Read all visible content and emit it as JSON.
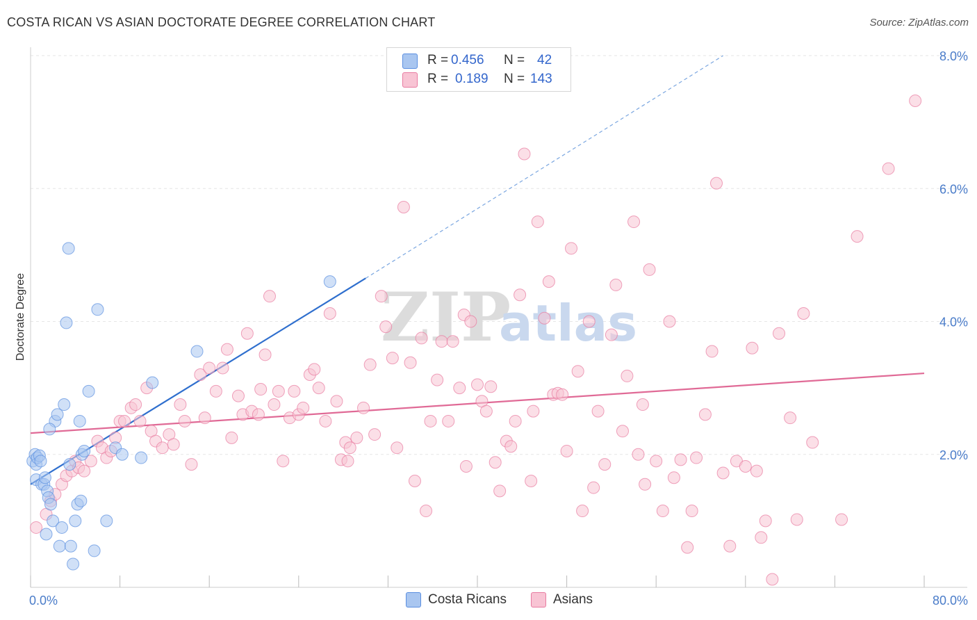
{
  "title": "COSTA RICAN VS ASIAN DOCTORATE DEGREE CORRELATION CHART",
  "source": "Source: ZipAtlas.com",
  "watermark": {
    "zip": "ZIP",
    "atlas": "atlas"
  },
  "legend": {
    "rows": [
      {
        "r_label": "R =",
        "r_value": "0.456",
        "n_label": "N =",
        "n_value": "42",
        "color": "#a9c6f0",
        "border": "#5a8ee0"
      },
      {
        "r_label": "R =",
        "r_value": "0.189",
        "n_label": "N =",
        "n_value": "143",
        "color": "#f8c4d4",
        "border": "#e87aa0"
      }
    ]
  },
  "bottom_legend": [
    {
      "label": "Costa Ricans",
      "color": "#a9c6f0",
      "border": "#5a8ee0"
    },
    {
      "label": "Asians",
      "color": "#f8c4d4",
      "border": "#e87aa0"
    }
  ],
  "chart_data": {
    "type": "scatter",
    "title": "COSTA RICAN VS ASIAN DOCTORATE DEGREE CORRELATION CHART",
    "xlabel": "",
    "ylabel": "Doctorate Degree",
    "xlim": [
      0,
      80
    ],
    "ylim": [
      0,
      8
    ],
    "x_tick_labels": [
      "0.0%",
      "80.0%"
    ],
    "y_ticks": [
      2,
      4,
      6,
      8
    ],
    "y_tick_labels": [
      "2.0%",
      "4.0%",
      "6.0%",
      "8.0%"
    ],
    "grid": true,
    "series": [
      {
        "name": "Costa Ricans",
        "color": "#5a8ee0",
        "fill": "#a9c6f0",
        "R": 0.456,
        "N": 42,
        "trend": {
          "x0": 0,
          "y0": 1.55,
          "x1": 30,
          "y1": 4.65,
          "dashed_to_x": 62,
          "dashed_to_y": 8.0
        },
        "points": [
          [
            0.2,
            1.9
          ],
          [
            0.4,
            2.0
          ],
          [
            0.5,
            1.85
          ],
          [
            0.6,
            1.95
          ],
          [
            0.8,
            1.98
          ],
          [
            0.9,
            1.9
          ],
          [
            0.5,
            1.62
          ],
          [
            1.0,
            1.55
          ],
          [
            1.2,
            1.55
          ],
          [
            1.3,
            1.65
          ],
          [
            1.4,
            0.8
          ],
          [
            1.5,
            1.45
          ],
          [
            1.6,
            1.35
          ],
          [
            1.8,
            1.25
          ],
          [
            2.0,
            1.0
          ],
          [
            2.2,
            2.5
          ],
          [
            2.4,
            2.6
          ],
          [
            2.6,
            0.62
          ],
          [
            2.8,
            0.9
          ],
          [
            3.0,
            2.75
          ],
          [
            3.2,
            3.98
          ],
          [
            3.4,
            5.1
          ],
          [
            3.5,
            1.85
          ],
          [
            3.6,
            0.62
          ],
          [
            3.8,
            0.35
          ],
          [
            4.0,
            1.0
          ],
          [
            4.2,
            1.25
          ],
          [
            4.4,
            2.5
          ],
          [
            4.5,
            1.3
          ],
          [
            4.6,
            2.0
          ],
          [
            4.8,
            2.05
          ],
          [
            5.2,
            2.95
          ],
          [
            5.7,
            0.55
          ],
          [
            6.0,
            4.18
          ],
          [
            6.8,
            1.0
          ],
          [
            7.6,
            2.1
          ],
          [
            8.2,
            2.0
          ],
          [
            9.9,
            1.95
          ],
          [
            10.9,
            3.08
          ],
          [
            14.9,
            3.55
          ],
          [
            26.8,
            4.6
          ],
          [
            1.7,
            2.38
          ]
        ]
      },
      {
        "name": "Asians",
        "color": "#e87aa0",
        "fill": "#f8c4d4",
        "R": 0.189,
        "N": 143,
        "trend": {
          "x0": 0,
          "y0": 2.32,
          "x1": 80,
          "y1": 3.22
        },
        "points": [
          [
            0.5,
            0.9
          ],
          [
            1.4,
            1.1
          ],
          [
            1.8,
            1.3
          ],
          [
            2.2,
            1.4
          ],
          [
            2.8,
            1.55
          ],
          [
            3.2,
            1.68
          ],
          [
            3.7,
            1.75
          ],
          [
            4.0,
            1.9
          ],
          [
            4.3,
            1.8
          ],
          [
            4.8,
            1.75
          ],
          [
            5.4,
            1.9
          ],
          [
            6.0,
            2.2
          ],
          [
            6.4,
            2.1
          ],
          [
            6.8,
            1.95
          ],
          [
            7.2,
            2.05
          ],
          [
            7.6,
            2.25
          ],
          [
            8.0,
            2.5
          ],
          [
            8.4,
            2.5
          ],
          [
            9.0,
            2.7
          ],
          [
            9.4,
            2.75
          ],
          [
            9.8,
            2.5
          ],
          [
            10.4,
            3.0
          ],
          [
            10.8,
            2.35
          ],
          [
            11.2,
            2.2
          ],
          [
            11.8,
            2.1
          ],
          [
            12.4,
            2.3
          ],
          [
            12.8,
            2.15
          ],
          [
            13.4,
            2.75
          ],
          [
            13.8,
            2.5
          ],
          [
            14.4,
            1.85
          ],
          [
            15.2,
            3.2
          ],
          [
            15.6,
            2.55
          ],
          [
            16.0,
            3.3
          ],
          [
            16.6,
            2.95
          ],
          [
            17.2,
            3.3
          ],
          [
            17.6,
            3.58
          ],
          [
            18.0,
            2.25
          ],
          [
            18.6,
            2.88
          ],
          [
            19.0,
            2.6
          ],
          [
            19.4,
            3.82
          ],
          [
            19.8,
            2.65
          ],
          [
            20.6,
            2.98
          ],
          [
            21.0,
            3.5
          ],
          [
            21.4,
            4.38
          ],
          [
            21.8,
            2.75
          ],
          [
            22.2,
            2.95
          ],
          [
            22.6,
            1.9
          ],
          [
            23.2,
            2.55
          ],
          [
            23.6,
            2.95
          ],
          [
            24.0,
            2.6
          ],
          [
            24.4,
            2.7
          ],
          [
            25.0,
            3.2
          ],
          [
            25.4,
            3.28
          ],
          [
            25.8,
            3.0
          ],
          [
            26.4,
            2.5
          ],
          [
            26.8,
            4.12
          ],
          [
            27.4,
            2.8
          ],
          [
            27.8,
            1.92
          ],
          [
            28.2,
            2.18
          ],
          [
            28.6,
            2.1
          ],
          [
            29.2,
            2.25
          ],
          [
            29.8,
            2.7
          ],
          [
            30.4,
            3.35
          ],
          [
            30.8,
            2.3
          ],
          [
            31.4,
            4.38
          ],
          [
            31.8,
            3.92
          ],
          [
            32.4,
            3.45
          ],
          [
            32.8,
            2.1
          ],
          [
            33.4,
            5.72
          ],
          [
            34.0,
            3.38
          ],
          [
            34.4,
            1.6
          ],
          [
            35.0,
            3.75
          ],
          [
            35.4,
            1.15
          ],
          [
            35.8,
            2.5
          ],
          [
            36.4,
            3.12
          ],
          [
            36.8,
            3.7
          ],
          [
            37.4,
            2.5
          ],
          [
            37.8,
            3.7
          ],
          [
            38.4,
            3.0
          ],
          [
            38.8,
            4.1
          ],
          [
            39.4,
            4.0
          ],
          [
            40.0,
            3.05
          ],
          [
            40.4,
            2.8
          ],
          [
            40.8,
            2.65
          ],
          [
            41.2,
            3.02
          ],
          [
            41.6,
            1.88
          ],
          [
            42.0,
            1.45
          ],
          [
            42.6,
            2.2
          ],
          [
            43.0,
            2.12
          ],
          [
            43.4,
            2.5
          ],
          [
            43.8,
            4.4
          ],
          [
            44.2,
            6.52
          ],
          [
            44.8,
            1.6
          ],
          [
            45.0,
            2.65
          ],
          [
            45.4,
            5.5
          ],
          [
            46.0,
            4.05
          ],
          [
            46.4,
            4.6
          ],
          [
            46.8,
            2.9
          ],
          [
            47.2,
            2.92
          ],
          [
            47.6,
            2.9
          ],
          [
            48.0,
            2.05
          ],
          [
            48.4,
            5.1
          ],
          [
            49.0,
            3.25
          ],
          [
            49.4,
            1.15
          ],
          [
            50.0,
            4.0
          ],
          [
            50.4,
            1.5
          ],
          [
            50.8,
            2.65
          ],
          [
            51.4,
            1.85
          ],
          [
            52.0,
            3.8
          ],
          [
            52.4,
            4.55
          ],
          [
            53.0,
            2.35
          ],
          [
            53.4,
            3.18
          ],
          [
            54.0,
            5.5
          ],
          [
            54.4,
            2.0
          ],
          [
            54.8,
            2.75
          ],
          [
            55.4,
            4.78
          ],
          [
            56.0,
            1.9
          ],
          [
            56.6,
            1.15
          ],
          [
            57.2,
            4.0
          ],
          [
            57.6,
            1.65
          ],
          [
            58.2,
            1.92
          ],
          [
            58.8,
            0.6
          ],
          [
            59.2,
            1.15
          ],
          [
            59.6,
            1.95
          ],
          [
            60.4,
            2.6
          ],
          [
            61.0,
            3.55
          ],
          [
            61.4,
            6.08
          ],
          [
            62.0,
            1.72
          ],
          [
            62.6,
            0.62
          ],
          [
            63.2,
            1.9
          ],
          [
            64.0,
            1.82
          ],
          [
            64.6,
            3.6
          ],
          [
            65.0,
            1.75
          ],
          [
            65.4,
            0.75
          ],
          [
            65.8,
            1.0
          ],
          [
            66.4,
            0.12
          ],
          [
            67.0,
            3.82
          ],
          [
            68.0,
            2.55
          ],
          [
            68.6,
            1.02
          ],
          [
            69.2,
            4.12
          ],
          [
            70.0,
            2.18
          ],
          [
            72.6,
            1.02
          ],
          [
            74.0,
            5.28
          ],
          [
            76.8,
            6.3
          ],
          [
            79.2,
            7.32
          ],
          [
            20.4,
            2.6
          ],
          [
            28.4,
            1.9
          ],
          [
            39.0,
            1.82
          ],
          [
            55.0,
            1.55
          ]
        ]
      }
    ]
  }
}
